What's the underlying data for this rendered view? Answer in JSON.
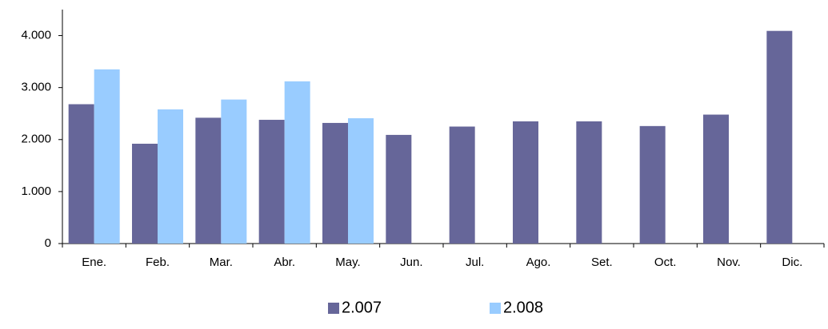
{
  "chart_data": {
    "type": "bar",
    "categories": [
      "Ene.",
      "Feb.",
      "Mar.",
      "Abr.",
      "May.",
      "Jun.",
      "Jul.",
      "Ago.",
      "Set.",
      "Oct.",
      "Nov.",
      "Dic."
    ],
    "series": [
      {
        "name": "2.007",
        "color": "#666699",
        "values": [
          2680,
          1920,
          2420,
          2380,
          2320,
          2090,
          2250,
          2350,
          2350,
          2260,
          2480,
          4090
        ]
      },
      {
        "name": "2.008",
        "color": "#99ccff",
        "values": [
          3350,
          2580,
          2770,
          3120,
          2410,
          null,
          null,
          null,
          null,
          null,
          null,
          null
        ]
      }
    ],
    "ylim": [
      0,
      4500
    ],
    "yticks": [
      0,
      {
        "value": 1000,
        "label": "1.000"
      },
      {
        "value": 2000,
        "label": "2.000"
      },
      {
        "value": 3000,
        "label": "3.000"
      },
      {
        "value": 4000,
        "label": "4.000"
      }
    ],
    "grid": false,
    "legend": "bottom"
  }
}
